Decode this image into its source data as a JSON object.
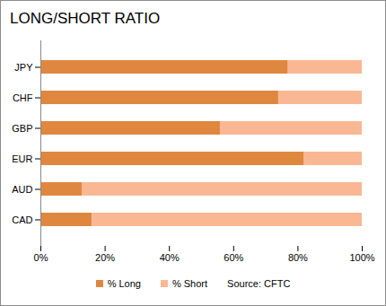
{
  "chart_data": {
    "type": "bar",
    "title": "LONG/SHORT RATIO",
    "orientation": "horizontal",
    "stacked": true,
    "grid": false,
    "legend": "bottom",
    "annotation": "Source: CFTC",
    "categories": [
      "JPY",
      "CHF",
      "GBP",
      "EUR",
      "AUD",
      "CAD"
    ],
    "series": [
      {
        "name": "% Long",
        "color": "#e0873f",
        "values": [
          77,
          74,
          56,
          82,
          13,
          16
        ]
      },
      {
        "name": "% Short",
        "color": "#f9b893",
        "values": [
          23,
          26,
          44,
          18,
          87,
          84
        ]
      }
    ],
    "xlim": [
      0,
      100
    ],
    "xticks": [
      {
        "value": 0,
        "label": "0%"
      },
      {
        "value": 20,
        "label": "20%"
      },
      {
        "value": 40,
        "label": "40%"
      },
      {
        "value": 60,
        "label": "60%"
      },
      {
        "value": 80,
        "label": "80%"
      },
      {
        "value": 100,
        "label": "100%"
      }
    ]
  }
}
